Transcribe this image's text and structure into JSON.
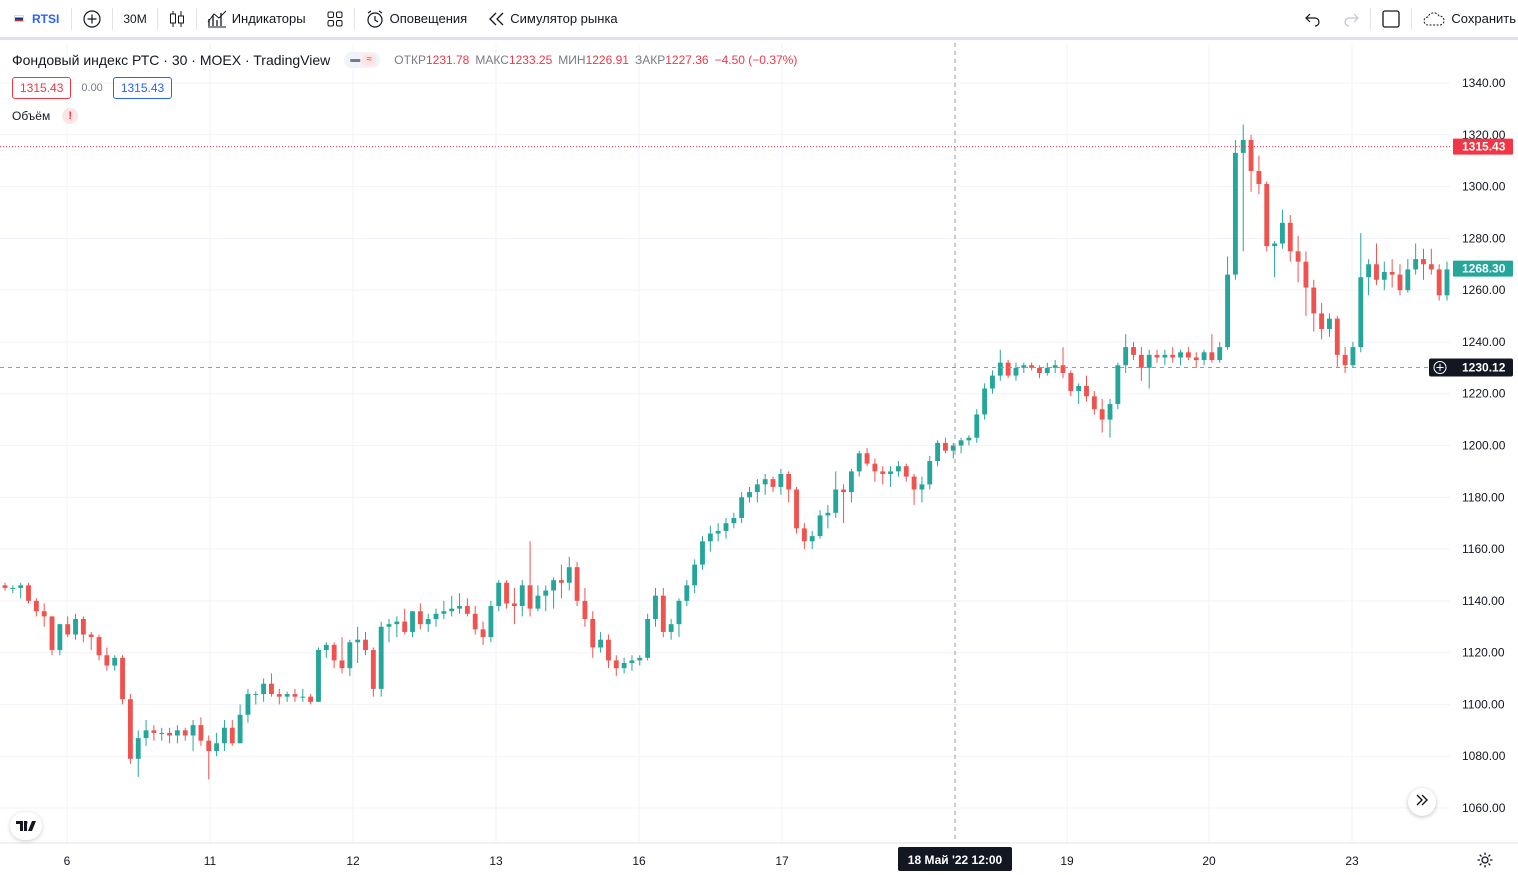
{
  "toolbar": {
    "symbol": "RTSI",
    "interval": "30М",
    "indicators_label": "Индикаторы",
    "alerts_label": "Оповещения",
    "replay_label": "Симулятор рынка",
    "save_label": "Сохранить",
    "icons": [
      "add-symbol-icon",
      "candles-icon",
      "indicators-icon",
      "templates-icon",
      "alert-icon",
      "replay-icon",
      "undo-icon",
      "redo-icon",
      "fullscreen-icon",
      "cloud-save-icon"
    ]
  },
  "legend": {
    "title": "Фондовый индекс РТС · 30 · MOEX · TradingView",
    "open_label": "ОТКР",
    "open": "1231.78",
    "high_label": "МАКС",
    "high": "1233.25",
    "low_label": "МИН",
    "low": "1226.91",
    "close_label": "ЗАКР",
    "close": "1227.36",
    "change": "−4.50 (−0.37%)",
    "bid": "1315.43",
    "spread": "0.00",
    "ask": "1315.43",
    "volume_label": "Объём",
    "volume_warning": "!"
  },
  "crosshair": {
    "price_label": "1230.12",
    "time_label": "18 Май '22   12:00"
  },
  "price_markers": {
    "high_line": "1315.43",
    "last": "1268.30"
  },
  "colors": {
    "up": "#26a69a",
    "down": "#ef5350",
    "accent": "#2962ff",
    "grid": "#f0f3fa"
  },
  "chart_data": {
    "type": "candlestick",
    "y_ticks": [
      "1340.00",
      "1320.00",
      "1300.00",
      "1280.00",
      "1260.00",
      "1240.00",
      "1220.00",
      "1200.00",
      "1180.00",
      "1160.00",
      "1140.00",
      "1120.00",
      "1100.00",
      "1080.00",
      "1060.00"
    ],
    "x_ticks": [
      "6",
      "11",
      "12",
      "13",
      "16",
      "17",
      "19",
      "20",
      "23"
    ],
    "ylim": [
      1052,
      1345
    ],
    "candles": [
      [
        1146,
        1147,
        1144,
        1145
      ],
      [
        1145,
        1146,
        1143,
        1145
      ],
      [
        1145,
        1147,
        1141,
        1146
      ],
      [
        1146,
        1147,
        1139,
        1140
      ],
      [
        1140,
        1141,
        1134,
        1136
      ],
      [
        1136,
        1139,
        1130,
        1134
      ],
      [
        1134,
        1134,
        1119,
        1121
      ],
      [
        1121,
        1131,
        1119,
        1131
      ],
      [
        1131,
        1134,
        1126,
        1127
      ],
      [
        1127,
        1135,
        1125,
        1133
      ],
      [
        1133,
        1134,
        1124,
        1127
      ],
      [
        1127,
        1128,
        1121,
        1126
      ],
      [
        1126,
        1127,
        1117,
        1119
      ],
      [
        1119,
        1122,
        1113,
        1115
      ],
      [
        1115,
        1119,
        1113,
        1118
      ],
      [
        1118,
        1119,
        1100,
        1102
      ],
      [
        1102,
        1104,
        1077,
        1079
      ],
      [
        1079,
        1090,
        1072,
        1087
      ],
      [
        1087,
        1094,
        1084,
        1090
      ],
      [
        1090,
        1092,
        1086,
        1089
      ],
      [
        1089,
        1091,
        1086,
        1089
      ],
      [
        1089,
        1091,
        1085,
        1088
      ],
      [
        1088,
        1092,
        1085,
        1090
      ],
      [
        1090,
        1091,
        1086,
        1088
      ],
      [
        1088,
        1094,
        1082,
        1092
      ],
      [
        1092,
        1095,
        1084,
        1086
      ],
      [
        1086,
        1088,
        1071,
        1082
      ],
      [
        1082,
        1089,
        1080,
        1085
      ],
      [
        1085,
        1094,
        1082,
        1091
      ],
      [
        1091,
        1094,
        1084,
        1085
      ],
      [
        1085,
        1100,
        1085,
        1096
      ],
      [
        1096,
        1106,
        1093,
        1104
      ],
      [
        1104,
        1105,
        1100,
        1104
      ],
      [
        1104,
        1110,
        1101,
        1108
      ],
      [
        1108,
        1112,
        1103,
        1104
      ],
      [
        1104,
        1106,
        1100,
        1103
      ],
      [
        1103,
        1105,
        1101,
        1104
      ],
      [
        1104,
        1106,
        1101,
        1103
      ],
      [
        1103,
        1106,
        1101,
        1103
      ],
      [
        1103,
        1104,
        1100,
        1101
      ],
      [
        1101,
        1122,
        1101,
        1121
      ],
      [
        1121,
        1124,
        1118,
        1123
      ],
      [
        1123,
        1124,
        1114,
        1117
      ],
      [
        1117,
        1126,
        1112,
        1114
      ],
      [
        1114,
        1125,
        1111,
        1124
      ],
      [
        1124,
        1130,
        1116,
        1125
      ],
      [
        1125,
        1128,
        1119,
        1121
      ],
      [
        1121,
        1122,
        1103,
        1106
      ],
      [
        1106,
        1132,
        1103,
        1130
      ],
      [
        1130,
        1133,
        1124,
        1131
      ],
      [
        1131,
        1134,
        1126,
        1132
      ],
      [
        1132,
        1137,
        1127,
        1128
      ],
      [
        1128,
        1136,
        1126,
        1136
      ],
      [
        1136,
        1139,
        1129,
        1131
      ],
      [
        1131,
        1135,
        1128,
        1133
      ],
      [
        1133,
        1137,
        1130,
        1135
      ],
      [
        1135,
        1140,
        1133,
        1136
      ],
      [
        1136,
        1142,
        1134,
        1137
      ],
      [
        1137,
        1143,
        1135,
        1138
      ],
      [
        1138,
        1141,
        1134,
        1135
      ],
      [
        1135,
        1138,
        1127,
        1129
      ],
      [
        1129,
        1132,
        1123,
        1126
      ],
      [
        1126,
        1140,
        1124,
        1138
      ],
      [
        1138,
        1148,
        1136,
        1147
      ],
      [
        1147,
        1148,
        1137,
        1139
      ],
      [
        1139,
        1145,
        1131,
        1138
      ],
      [
        1138,
        1148,
        1134,
        1146
      ],
      [
        1146,
        1163,
        1134,
        1137
      ],
      [
        1137,
        1146,
        1136,
        1142
      ],
      [
        1142,
        1146,
        1136,
        1144
      ],
      [
        1144,
        1149,
        1137,
        1148
      ],
      [
        1148,
        1154,
        1141,
        1147
      ],
      [
        1147,
        1157,
        1144,
        1153
      ],
      [
        1153,
        1155,
        1138,
        1140
      ],
      [
        1140,
        1145,
        1130,
        1133
      ],
      [
        1133,
        1136,
        1118,
        1122
      ],
      [
        1122,
        1128,
        1120,
        1125
      ],
      [
        1125,
        1127,
        1114,
        1117
      ],
      [
        1117,
        1119,
        1111,
        1114
      ],
      [
        1114,
        1118,
        1112,
        1116
      ],
      [
        1116,
        1119,
        1113,
        1117
      ],
      [
        1117,
        1119,
        1115,
        1118
      ],
      [
        1118,
        1135,
        1117,
        1133
      ],
      [
        1133,
        1145,
        1130,
        1142
      ],
      [
        1142,
        1145,
        1126,
        1128
      ],
      [
        1128,
        1133,
        1125,
        1131
      ],
      [
        1131,
        1141,
        1126,
        1140
      ],
      [
        1140,
        1148,
        1138,
        1146
      ],
      [
        1146,
        1156,
        1143,
        1154
      ],
      [
        1154,
        1165,
        1152,
        1163
      ],
      [
        1163,
        1169,
        1159,
        1166
      ],
      [
        1166,
        1170,
        1163,
        1167
      ],
      [
        1167,
        1172,
        1164,
        1170
      ],
      [
        1170,
        1174,
        1168,
        1172
      ],
      [
        1172,
        1182,
        1170,
        1180
      ],
      [
        1180,
        1184,
        1178,
        1182
      ],
      [
        1182,
        1187,
        1178,
        1185
      ],
      [
        1185,
        1189,
        1181,
        1187
      ],
      [
        1187,
        1188,
        1182,
        1184
      ],
      [
        1184,
        1191,
        1181,
        1189
      ],
      [
        1189,
        1190,
        1178,
        1183
      ],
      [
        1183,
        1184,
        1166,
        1168
      ],
      [
        1168,
        1170,
        1160,
        1163
      ],
      [
        1163,
        1167,
        1160,
        1165
      ],
      [
        1165,
        1175,
        1164,
        1173
      ],
      [
        1173,
        1177,
        1168,
        1174
      ],
      [
        1174,
        1190,
        1172,
        1183
      ],
      [
        1183,
        1185,
        1170,
        1182
      ],
      [
        1182,
        1191,
        1178,
        1190
      ],
      [
        1190,
        1198,
        1188,
        1197
      ],
      [
        1197,
        1199,
        1192,
        1193
      ],
      [
        1193,
        1195,
        1186,
        1190
      ],
      [
        1190,
        1192,
        1185,
        1189
      ],
      [
        1189,
        1192,
        1184,
        1190
      ],
      [
        1190,
        1194,
        1188,
        1192
      ],
      [
        1192,
        1193,
        1186,
        1188
      ],
      [
        1188,
        1189,
        1177,
        1183
      ],
      [
        1183,
        1188,
        1178,
        1185
      ],
      [
        1185,
        1196,
        1183,
        1194
      ],
      [
        1194,
        1202,
        1192,
        1201
      ],
      [
        1201,
        1203,
        1197,
        1198
      ],
      [
        1198,
        1201,
        1195,
        1200
      ],
      [
        1200,
        1203,
        1197,
        1202
      ],
      [
        1202,
        1204,
        1200,
        1203
      ],
      [
        1203,
        1214,
        1201,
        1212
      ],
      [
        1212,
        1224,
        1210,
        1222
      ],
      [
        1222,
        1229,
        1220,
        1227
      ],
      [
        1227,
        1237,
        1225,
        1232
      ],
      [
        1232,
        1233,
        1226,
        1227
      ],
      [
        1227,
        1232,
        1225,
        1230
      ],
      [
        1230,
        1232,
        1228,
        1231
      ],
      [
        1231,
        1232,
        1229,
        1230
      ],
      [
        1230,
        1231,
        1226,
        1228
      ],
      [
        1228,
        1232,
        1227,
        1230
      ],
      [
        1230,
        1233,
        1228,
        1231
      ],
      [
        1231,
        1238,
        1226,
        1228
      ],
      [
        1228,
        1229,
        1219,
        1221
      ],
      [
        1221,
        1224,
        1216,
        1223
      ],
      [
        1223,
        1227,
        1217,
        1219
      ],
      [
        1219,
        1221,
        1212,
        1214
      ],
      [
        1214,
        1218,
        1205,
        1210
      ],
      [
        1210,
        1218,
        1203,
        1216
      ],
      [
        1216,
        1232,
        1214,
        1231
      ],
      [
        1231,
        1243,
        1228,
        1238
      ],
      [
        1238,
        1240,
        1233,
        1235
      ],
      [
        1235,
        1238,
        1225,
        1230
      ],
      [
        1230,
        1237,
        1222,
        1235
      ],
      [
        1235,
        1237,
        1232,
        1234
      ],
      [
        1234,
        1237,
        1231,
        1235
      ],
      [
        1235,
        1238,
        1232,
        1234
      ],
      [
        1234,
        1237,
        1231,
        1236
      ],
      [
        1236,
        1238,
        1233,
        1234
      ],
      [
        1234,
        1236,
        1230,
        1233
      ],
      [
        1233,
        1237,
        1231,
        1236
      ],
      [
        1236,
        1243,
        1232,
        1233
      ],
      [
        1233,
        1240,
        1232,
        1238
      ],
      [
        1238,
        1273,
        1237,
        1266
      ],
      [
        1266,
        1318,
        1264,
        1313
      ],
      [
        1313,
        1324,
        1275,
        1318
      ],
      [
        1318,
        1320,
        1298,
        1306
      ],
      [
        1306,
        1312,
        1297,
        1301
      ],
      [
        1301,
        1302,
        1275,
        1277
      ],
      [
        1277,
        1279,
        1265,
        1278
      ],
      [
        1278,
        1291,
        1276,
        1286
      ],
      [
        1286,
        1289,
        1271,
        1275
      ],
      [
        1275,
        1281,
        1263,
        1271
      ],
      [
        1271,
        1275,
        1250,
        1261
      ],
      [
        1261,
        1264,
        1244,
        1251
      ],
      [
        1251,
        1255,
        1241,
        1245
      ],
      [
        1245,
        1251,
        1242,
        1249
      ],
      [
        1249,
        1250,
        1230,
        1235
      ],
      [
        1235,
        1238,
        1228,
        1231
      ],
      [
        1231,
        1240,
        1230,
        1238
      ],
      [
        1238,
        1282,
        1236,
        1265
      ],
      [
        1265,
        1272,
        1258,
        1270
      ],
      [
        1270,
        1278,
        1262,
        1264
      ],
      [
        1264,
        1271,
        1260,
        1267
      ],
      [
        1267,
        1272,
        1261,
        1266
      ],
      [
        1266,
        1270,
        1258,
        1260
      ],
      [
        1260,
        1272,
        1259,
        1268
      ],
      [
        1268,
        1278,
        1266,
        1272
      ],
      [
        1272,
        1276,
        1264,
        1270
      ],
      [
        1270,
        1276,
        1266,
        1268
      ],
      [
        1268,
        1270,
        1256,
        1258
      ],
      [
        1258,
        1271,
        1256,
        1268
      ]
    ]
  }
}
